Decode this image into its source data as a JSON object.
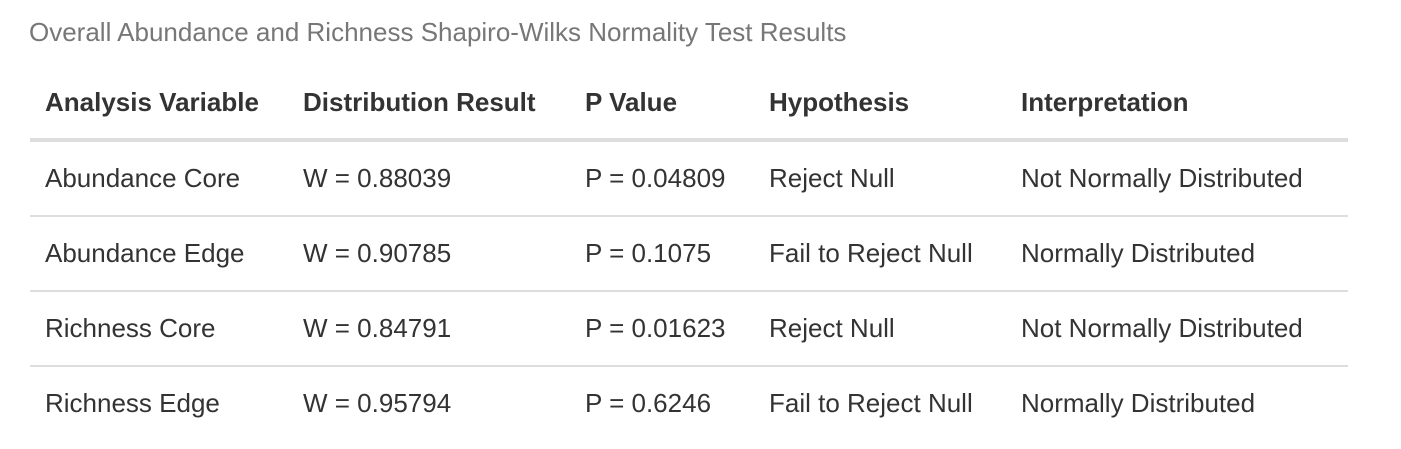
{
  "caption": "Overall Abundance and Richness Shapiro-Wilks Normality Test Results",
  "table": {
    "headers": [
      "Analysis Variable",
      "Distribution Result",
      "P Value",
      "Hypothesis",
      "Interpretation"
    ],
    "rows": [
      [
        "Abundance Core",
        "W = 0.88039",
        "P = 0.04809",
        "Reject Null",
        "Not Normally Distributed"
      ],
      [
        "Abundance Edge",
        "W = 0.90785",
        "P = 0.1075",
        "Fail to Reject Null",
        "Normally Distributed"
      ],
      [
        "Richness Core",
        "W = 0.84791",
        "P = 0.01623",
        "Reject Null",
        "Not Normally Distributed"
      ],
      [
        "Richness Edge",
        "W = 0.95794",
        "P = 0.6246",
        "Fail to Reject Null",
        "Normally Distributed"
      ]
    ]
  }
}
